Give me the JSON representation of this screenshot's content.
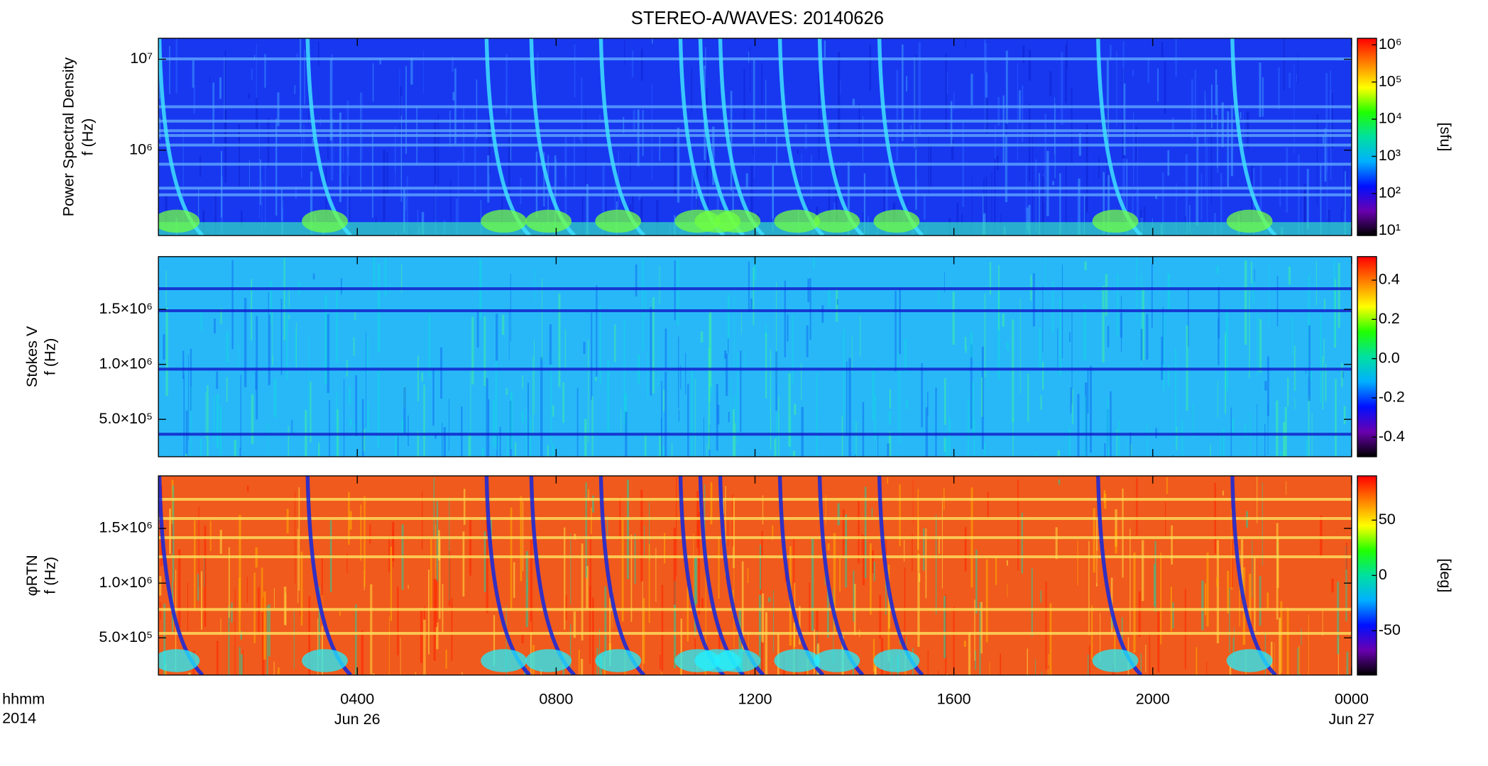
{
  "chart_data": {
    "type": "heatmap",
    "title": "STEREO-A/WAVES: 20140626",
    "xlabel_lines": [
      "hhmm",
      "2014"
    ],
    "xlim": [
      0,
      24
    ],
    "xticks": [
      {
        "value": 4,
        "label": "0400"
      },
      {
        "value": 8,
        "label": "0800"
      },
      {
        "value": 12,
        "label": "1200"
      },
      {
        "value": 16,
        "label": "1600"
      },
      {
        "value": 20,
        "label": "2000"
      },
      {
        "value": 24,
        "label": "0000"
      }
    ],
    "date_labels": [
      {
        "value": 4,
        "label": "Jun 26"
      },
      {
        "value": 24,
        "label": "Jun 27"
      }
    ],
    "colormap": [
      "#000000",
      "#6a00b0",
      "#0010ff",
      "#00b0ff",
      "#00e0a0",
      "#20ff00",
      "#ffff00",
      "#ff8000",
      "#ff0000"
    ],
    "panels": [
      {
        "ylabel": [
          "Power Spectral Density",
          "f (Hz)"
        ],
        "yscale": "log",
        "ylim": [
          115000,
          17000000
        ],
        "yticks": [
          {
            "value": 1000000,
            "label": "10⁶"
          },
          {
            "value": 10000000,
            "label": "10⁷"
          }
        ],
        "colorbar": {
          "scale": "log",
          "zlim": [
            7.4,
            1500000
          ],
          "label": "[sfu]",
          "ticks": [
            {
              "value": 10,
              "label": "10¹"
            },
            {
              "value": 100,
              "label": "10²"
            },
            {
              "value": 1000,
              "label": "10³"
            },
            {
              "value": 10000,
              "label": "10⁴"
            },
            {
              "value": 100000,
              "label": "10⁵"
            },
            {
              "value": 1000000,
              "label": "10⁶"
            }
          ]
        },
        "background": "#1838f0"
      },
      {
        "ylabel": [
          "Stokes V",
          "f (Hz)"
        ],
        "yscale": "linear",
        "ylim": [
          160000,
          1980000
        ],
        "yticks": [
          {
            "value": 500000,
            "label": "5.0×10⁵"
          },
          {
            "value": 1000000,
            "label": "1.0×10⁶"
          },
          {
            "value": 1500000,
            "label": "1.5×10⁶"
          }
        ],
        "colorbar": {
          "scale": "linear",
          "zlim": [
            -0.5,
            0.52
          ],
          "label": "",
          "ticks": [
            -0.4,
            -0.2,
            {
              "value": 0,
              "label": "0.0"
            },
            0.2,
            0.4
          ]
        },
        "background": "#28b8f8"
      },
      {
        "ylabel": [
          "φRTN",
          "f (Hz)"
        ],
        "yscale": "linear",
        "ylim": [
          160000,
          1980000
        ],
        "yticks": [
          {
            "value": 500000,
            "label": "5.0×10⁵"
          },
          {
            "value": 1000000,
            "label": "1.0×10⁶"
          },
          {
            "value": 1500000,
            "label": "1.5×10⁶"
          }
        ],
        "colorbar": {
          "scale": "linear",
          "zlim": [
            -90,
            90
          ],
          "label": "[deg]",
          "ticks": [
            -50,
            0,
            50
          ]
        },
        "background": "#f05a1c"
      }
    ]
  }
}
